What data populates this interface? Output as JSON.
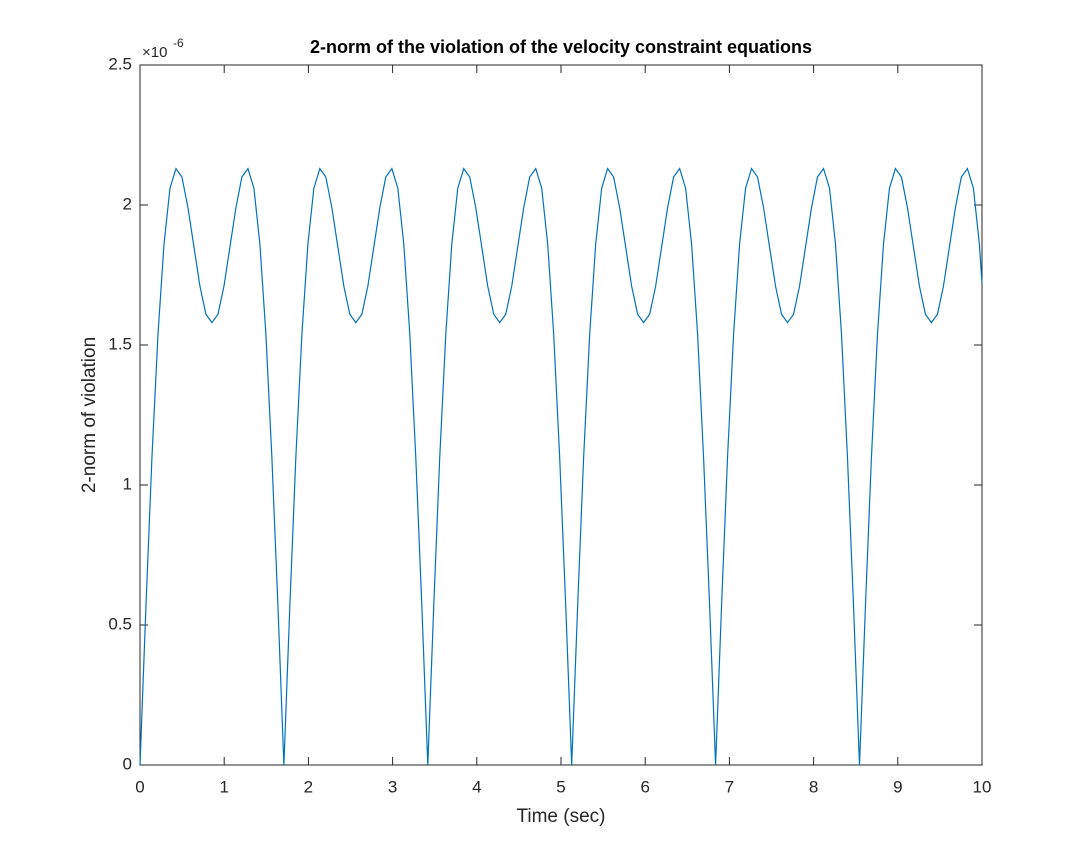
{
  "chart_data": {
    "type": "line",
    "title": "2-norm of the violation of the velocity constraint equations",
    "x_label": "Time (sec)",
    "y_label": "2-norm of violation",
    "y_exponent": {
      "base": "×10",
      "power": "-6"
    },
    "x": [
      0,
      0.071,
      0.142,
      0.214,
      0.285,
      0.356,
      0.427,
      0.498,
      0.57,
      0.641,
      0.712,
      0.783,
      0.854,
      0.926,
      0.997,
      1.068,
      1.139,
      1.21,
      1.282,
      1.353,
      1.424,
      1.495,
      1.566,
      1.638,
      1.709,
      1.78,
      1.851,
      1.923,
      1.994,
      2.065,
      2.136,
      2.207,
      2.279,
      2.35,
      2.421,
      2.492,
      2.563,
      2.635,
      2.706,
      2.777,
      2.848,
      2.919,
      2.991,
      3.062,
      3.133,
      3.204,
      3.275,
      3.347,
      3.418,
      3.489,
      3.56,
      3.632,
      3.703,
      3.774,
      3.845,
      3.916,
      3.988,
      4.059,
      4.13,
      4.201,
      4.272,
      4.344,
      4.415,
      4.486,
      4.557,
      4.628,
      4.7,
      4.771,
      4.842,
      4.913,
      4.984,
      5.056,
      5.127,
      5.198,
      5.269,
      5.341,
      5.412,
      5.483,
      5.554,
      5.625,
      5.697,
      5.768,
      5.839,
      5.91,
      5.981,
      6.053,
      6.124,
      6.195,
      6.266,
      6.337,
      6.409,
      6.48,
      6.551,
      6.622,
      6.693,
      6.765,
      6.836,
      6.907,
      6.978,
      7.05,
      7.121,
      7.192,
      7.263,
      7.334,
      7.406,
      7.477,
      7.548,
      7.619,
      7.69,
      7.762,
      7.833,
      7.904,
      7.975,
      8.046,
      8.118,
      8.189,
      8.26,
      8.331,
      8.402,
      8.474,
      8.545,
      8.616,
      8.687,
      8.759,
      8.83,
      8.901,
      8.972,
      9.043,
      9.115,
      9.186,
      9.257,
      9.328,
      9.399,
      9.471,
      9.542,
      9.613,
      9.684,
      9.755,
      9.827,
      9.898,
      9.969,
      10
    ],
    "series": [
      {
        "color": "#0072bd",
        "values": [
          0,
          0.57,
          1.1,
          1.54,
          1.86,
          2.06,
          2.13,
          2.1,
          1.99,
          1.85,
          1.71,
          1.61,
          1.58,
          1.61,
          1.71,
          1.85,
          1.99,
          2.1,
          2.13,
          2.06,
          1.86,
          1.54,
          1.1,
          0.57,
          0,
          0.57,
          1.1,
          1.54,
          1.86,
          2.06,
          2.13,
          2.1,
          1.99,
          1.85,
          1.71,
          1.61,
          1.58,
          1.61,
          1.71,
          1.85,
          1.99,
          2.1,
          2.13,
          2.06,
          1.86,
          1.54,
          1.1,
          0.57,
          0,
          0.57,
          1.1,
          1.54,
          1.86,
          2.06,
          2.13,
          2.1,
          1.99,
          1.85,
          1.71,
          1.61,
          1.58,
          1.61,
          1.71,
          1.85,
          1.99,
          2.1,
          2.13,
          2.06,
          1.86,
          1.54,
          1.1,
          0.57,
          0,
          0.57,
          1.1,
          1.54,
          1.86,
          2.06,
          2.13,
          2.1,
          1.99,
          1.85,
          1.71,
          1.61,
          1.58,
          1.61,
          1.71,
          1.85,
          1.99,
          2.1,
          2.13,
          2.06,
          1.86,
          1.54,
          1.1,
          0.57,
          0,
          0.57,
          1.1,
          1.54,
          1.86,
          2.06,
          2.13,
          2.1,
          1.99,
          1.85,
          1.71,
          1.61,
          1.58,
          1.61,
          1.71,
          1.85,
          1.99,
          2.1,
          2.13,
          2.06,
          1.86,
          1.54,
          1.1,
          0.57,
          0,
          0.57,
          1.1,
          1.54,
          1.86,
          2.06,
          2.13,
          2.1,
          1.99,
          1.85,
          1.71,
          1.61,
          1.58,
          1.61,
          1.71,
          1.85,
          1.99,
          2.1,
          2.13,
          2.06,
          1.86,
          1.72
        ]
      }
    ],
    "xlim": [
      0,
      10
    ],
    "xticks": [
      0,
      1,
      2,
      3,
      4,
      5,
      6,
      7,
      8,
      9,
      10
    ],
    "ylim": [
      0,
      2.5
    ],
    "yticks": [
      0,
      0.5,
      1,
      1.5,
      2,
      2.5
    ],
    "grid": false
  }
}
